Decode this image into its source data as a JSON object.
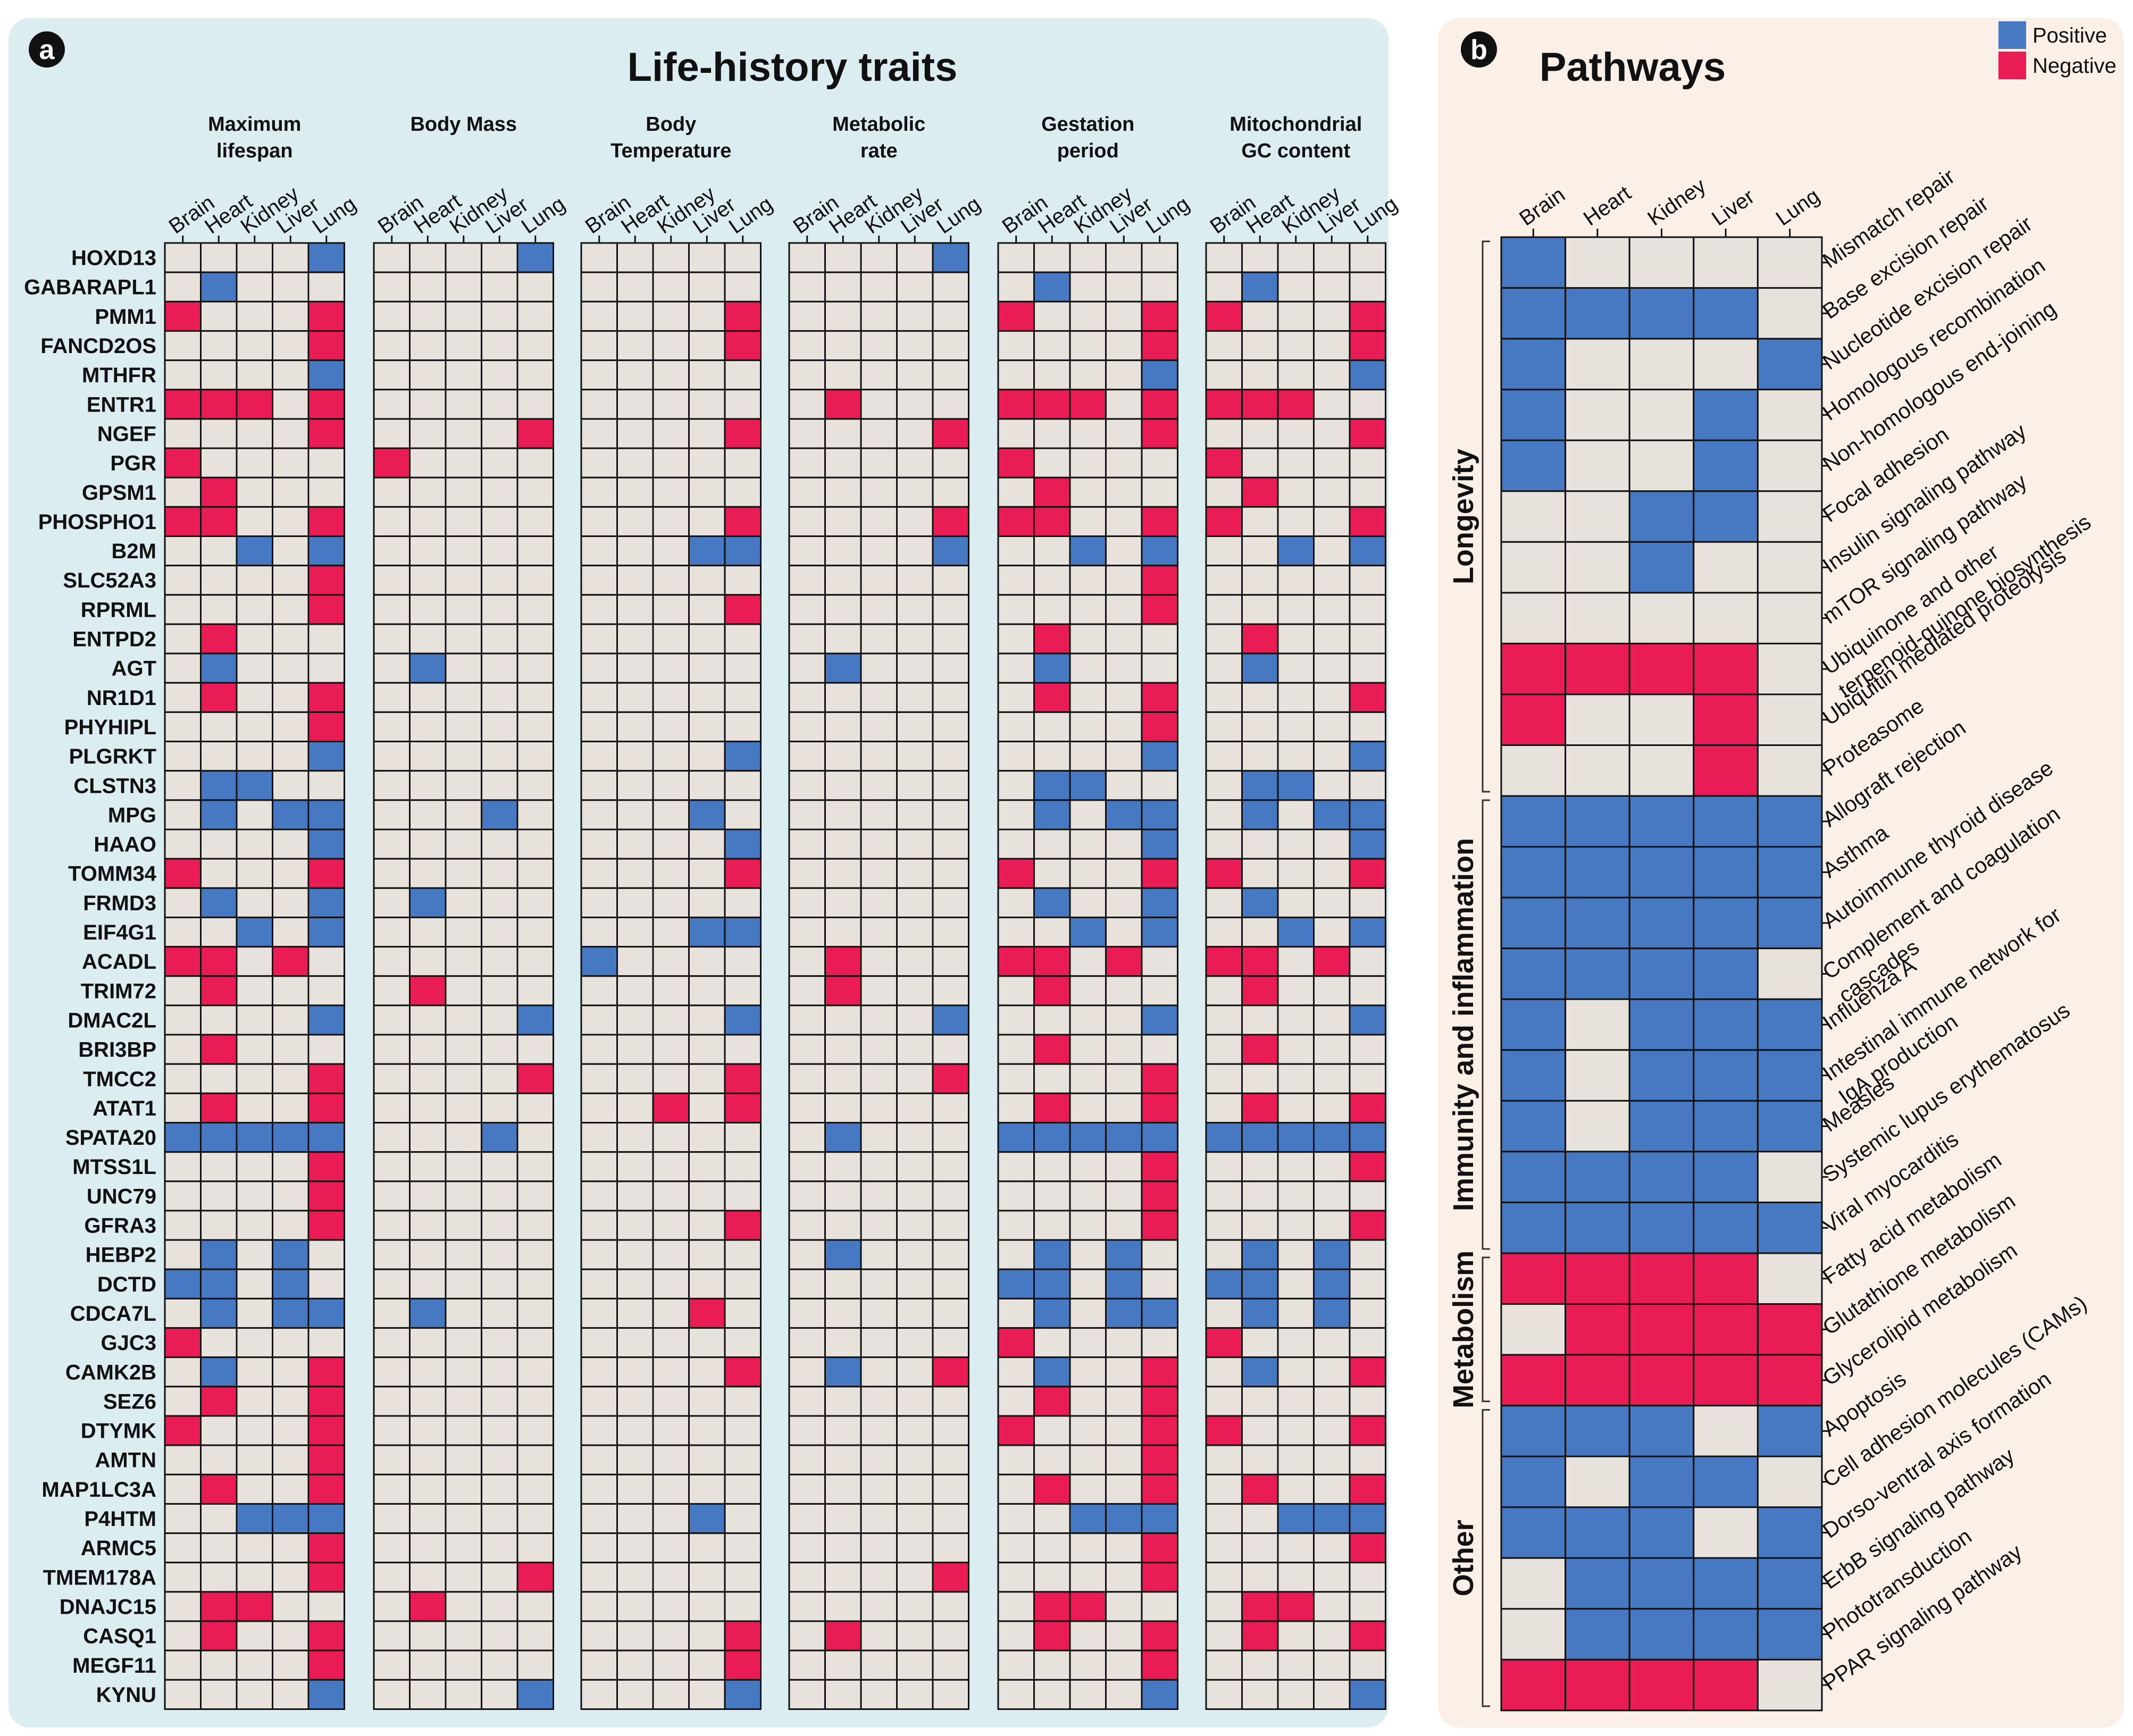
{
  "colors": {
    "positive": "#4679c2",
    "negative": "#ea1c55",
    "neutral": "#e7e3dc"
  },
  "chart_data": [
    {
      "type": "heatmap",
      "panel_label": "a",
      "title": "Life-history traits",
      "tissues": [
        "Brain",
        "Heart",
        "Kidney",
        "Liver",
        "Lung"
      ],
      "traits": [
        {
          "line1": "Maximum",
          "line2": "lifespan"
        },
        {
          "line1": "Body Mass",
          "line2": ""
        },
        {
          "line1": "Body",
          "line2": "Temperature"
        },
        {
          "line1": "Metabolic",
          "line2": "rate"
        },
        {
          "line1": "Gestation",
          "line2": "period"
        },
        {
          "line1": "Mitochondrial",
          "line2": "GC content"
        }
      ],
      "value_key": {
        "P": "Positive",
        "N": "Negative",
        ".": "No association"
      },
      "genes": [
        {
          "name": "HOXD13",
          "values": [
            "....P",
            "....P",
            ".....",
            "....P",
            ".....",
            "....."
          ]
        },
        {
          "name": "GABARAPL1",
          "values": [
            ".P...",
            ".....",
            ".....",
            ".....",
            ".P...",
            ".P..."
          ]
        },
        {
          "name": "PMM1",
          "values": [
            "N...N",
            ".....",
            "....N",
            ".....",
            "N...N",
            "N...N"
          ]
        },
        {
          "name": "FANCD2OS",
          "values": [
            "....N",
            ".....",
            "....N",
            ".....",
            "....N",
            "....N"
          ]
        },
        {
          "name": "MTHFR",
          "values": [
            "....P",
            ".....",
            ".....",
            ".....",
            "....P",
            "....P"
          ]
        },
        {
          "name": "ENTR1",
          "values": [
            "NNN.N",
            ".....",
            ".....",
            ".N...",
            "NNN.N",
            "NNN.."
          ]
        },
        {
          "name": "NGEF",
          "values": [
            "....N",
            "....N",
            "....N",
            "....N",
            "....N",
            "....N"
          ]
        },
        {
          "name": "PGR",
          "values": [
            "N....",
            "N....",
            ".....",
            ".....",
            "N....",
            "N...."
          ]
        },
        {
          "name": "GPSM1",
          "values": [
            ".N...",
            ".....",
            ".....",
            ".....",
            ".N...",
            ".N..."
          ]
        },
        {
          "name": "PHOSPHO1",
          "values": [
            "NN..N",
            ".....",
            "....N",
            "....N",
            "NN..N",
            "N...N"
          ]
        },
        {
          "name": "B2M",
          "values": [
            "..P.P",
            ".....",
            "...PP",
            "....P",
            "..P.P",
            "..P.P"
          ]
        },
        {
          "name": "SLC52A3",
          "values": [
            "....N",
            ".....",
            ".....",
            ".....",
            "....N",
            "....."
          ]
        },
        {
          "name": "RPRML",
          "values": [
            "....N",
            ".....",
            "....N",
            ".....",
            "....N",
            "....."
          ]
        },
        {
          "name": "ENTPD2",
          "values": [
            ".N...",
            ".....",
            ".....",
            ".....",
            ".N...",
            ".N..."
          ]
        },
        {
          "name": "AGT",
          "values": [
            ".P...",
            ".P...",
            ".....",
            ".P...",
            ".P...",
            ".P..."
          ]
        },
        {
          "name": "NR1D1",
          "values": [
            ".N..N",
            ".....",
            ".....",
            ".....",
            ".N..N",
            "....N"
          ]
        },
        {
          "name": "PHYHIPL",
          "values": [
            "....N",
            ".....",
            ".....",
            ".....",
            "....N",
            "....."
          ]
        },
        {
          "name": "PLGRKT",
          "values": [
            "....P",
            ".....",
            "....P",
            ".....",
            "....P",
            "....P"
          ]
        },
        {
          "name": "CLSTN3",
          "values": [
            ".PP..",
            ".....",
            ".....",
            ".....",
            ".PP..",
            ".PP.."
          ]
        },
        {
          "name": "MPG",
          "values": [
            ".P.PP",
            "...P.",
            "...P.",
            ".....",
            ".P.PP",
            ".P.PP"
          ]
        },
        {
          "name": "HAAO",
          "values": [
            "....P",
            ".....",
            "....P",
            ".....",
            "....P",
            "....P"
          ]
        },
        {
          "name": "TOMM34",
          "values": [
            "N...N",
            ".....",
            "....N",
            ".....",
            "N...N",
            "N...N"
          ]
        },
        {
          "name": "FRMD3",
          "values": [
            ".P..P",
            ".P...",
            ".....",
            ".....",
            ".P..P",
            ".P..."
          ]
        },
        {
          "name": "EIF4G1",
          "values": [
            "..P.P",
            ".....",
            "...PP",
            ".....",
            "..P.P",
            "..P.P"
          ]
        },
        {
          "name": "ACADL",
          "values": [
            "NN.N.",
            ".....",
            "P....",
            ".N...",
            "NN.N.",
            "NN.N."
          ]
        },
        {
          "name": "TRIM72",
          "values": [
            ".N...",
            ".N...",
            ".....",
            ".N...",
            ".N...",
            ".N..."
          ]
        },
        {
          "name": "DMAC2L",
          "values": [
            "....P",
            "....P",
            "....P",
            "....P",
            "....P",
            "....P"
          ]
        },
        {
          "name": "BRI3BP",
          "values": [
            ".N...",
            ".....",
            ".....",
            ".....",
            ".N...",
            ".N..."
          ]
        },
        {
          "name": "TMCC2",
          "values": [
            "....N",
            "....N",
            "....N",
            "....N",
            "....N",
            "....."
          ]
        },
        {
          "name": "ATAT1",
          "values": [
            ".N..N",
            ".....",
            "..N.N",
            ".....",
            ".N..N",
            ".N..N"
          ]
        },
        {
          "name": "SPATA20",
          "values": [
            "PPPPP",
            "...P.",
            ".....",
            ".P...",
            "PPPPP",
            "PPPPP"
          ]
        },
        {
          "name": "MTSS1L",
          "values": [
            "....N",
            ".....",
            ".....",
            ".....",
            "....N",
            "....N"
          ]
        },
        {
          "name": "UNC79",
          "values": [
            "....N",
            ".....",
            ".....",
            ".....",
            "....N",
            "....."
          ]
        },
        {
          "name": "GFRA3",
          "values": [
            "....N",
            ".....",
            "....N",
            ".....",
            "....N",
            "....N"
          ]
        },
        {
          "name": "HEBP2",
          "values": [
            ".P.P.",
            ".....",
            ".....",
            ".P...",
            ".P.P.",
            ".P.P."
          ]
        },
        {
          "name": "DCTD",
          "values": [
            "PP.P.",
            ".....",
            ".....",
            ".....",
            "PP.P.",
            "PP.P."
          ]
        },
        {
          "name": "CDCA7L",
          "values": [
            ".P.PP",
            ".P...",
            "...N.",
            ".....",
            ".P.PP",
            ".P.P."
          ]
        },
        {
          "name": "GJC3",
          "values": [
            "N....",
            ".....",
            ".....",
            ".....",
            "N....",
            "N...."
          ]
        },
        {
          "name": "CAMK2B",
          "values": [
            ".P..N",
            ".....",
            "....N",
            ".P..N",
            ".P..N",
            ".P..N"
          ]
        },
        {
          "name": "SEZ6",
          "values": [
            ".N..N",
            ".....",
            ".....",
            ".....",
            ".N..N",
            "....."
          ]
        },
        {
          "name": "DTYMK",
          "values": [
            "N...N",
            ".....",
            ".....",
            ".....",
            "N...N",
            "N...N"
          ]
        },
        {
          "name": "AMTN",
          "values": [
            "....N",
            ".....",
            ".....",
            ".....",
            "....N",
            "....."
          ]
        },
        {
          "name": "MAP1LC3A",
          "values": [
            ".N..N",
            ".....",
            ".....",
            ".....",
            ".N..N",
            ".N..N"
          ]
        },
        {
          "name": "P4HTM",
          "values": [
            "..PPP",
            ".....",
            "...P.",
            ".....",
            "..PPP",
            "..PPP"
          ]
        },
        {
          "name": "ARMC5",
          "values": [
            "....N",
            ".....",
            ".....",
            ".....",
            "....N",
            "....N"
          ]
        },
        {
          "name": "TMEM178A",
          "values": [
            "....N",
            "....N",
            ".....",
            "....N",
            "....N",
            "....."
          ]
        },
        {
          "name": "DNAJC15",
          "values": [
            ".NN..",
            ".N...",
            ".....",
            ".....",
            ".NN..",
            ".NN.."
          ]
        },
        {
          "name": "CASQ1",
          "values": [
            ".N..N",
            ".....",
            "....N",
            ".N...",
            ".N..N",
            ".N..N"
          ]
        },
        {
          "name": "MEGF11",
          "values": [
            "....N",
            ".....",
            "....N",
            ".....",
            "....N",
            "....."
          ]
        },
        {
          "name": "KYNU",
          "values": [
            "....P",
            "....P",
            "....P",
            ".....",
            "....P",
            "....P"
          ]
        }
      ]
    },
    {
      "type": "heatmap",
      "panel_label": "b",
      "title": "Pathways",
      "tissues": [
        "Brain",
        "Heart",
        "Kidney",
        "Liver",
        "Lung"
      ],
      "legend": [
        {
          "label": "Positive",
          "color": "#4679c2"
        },
        {
          "label": "Negative",
          "color": "#ea1c55"
        }
      ],
      "categories": [
        {
          "label": "Longevity",
          "from": 0,
          "to": 10
        },
        {
          "label": "Immunity and inflammation",
          "from": 11,
          "to": 19
        },
        {
          "label": "Metabolism",
          "from": 20,
          "to": 22
        },
        {
          "label": "Other",
          "from": 23,
          "to": 28
        }
      ],
      "pathways": [
        {
          "lines": [
            "Mismatch repair"
          ],
          "values": "P...."
        },
        {
          "lines": [
            "Base excision repair"
          ],
          "values": "PPPP."
        },
        {
          "lines": [
            "Nucleotide excision repair"
          ],
          "values": "P...P"
        },
        {
          "lines": [
            "Homologous recombination"
          ],
          "values": "P..P."
        },
        {
          "lines": [
            "Non-homologous end-joining"
          ],
          "values": "P..P."
        },
        {
          "lines": [
            "Focal adhesion"
          ],
          "values": "..PP."
        },
        {
          "lines": [
            "Insulin signaling pathway"
          ],
          "values": "..P.."
        },
        {
          "lines": [
            "mTOR signaling pathway"
          ],
          "values": "....."
        },
        {
          "lines": [
            "Ubiquinone and other",
            "terpenoid-quinone biosynthesis"
          ],
          "values": "NNNN."
        },
        {
          "lines": [
            "Ubiquitin mediated proteolysis"
          ],
          "values": "N..N."
        },
        {
          "lines": [
            "Proteasome"
          ],
          "values": "...N."
        },
        {
          "lines": [
            "Allograft rejection"
          ],
          "values": "PPPPP"
        },
        {
          "lines": [
            "Asthma"
          ],
          "values": "PPPPP"
        },
        {
          "lines": [
            "Autoimmune thyroid disease"
          ],
          "values": "PPPPP"
        },
        {
          "lines": [
            "Complement and coagulation",
            "cascades"
          ],
          "values": "PPPP."
        },
        {
          "lines": [
            "Influenza A"
          ],
          "values": "P.PPP"
        },
        {
          "lines": [
            "Intestinal immune network for",
            "IgA production"
          ],
          "values": "P.PPP"
        },
        {
          "lines": [
            "Measles"
          ],
          "values": "P.PPP"
        },
        {
          "lines": [
            "Systemic lupus erythematosus"
          ],
          "values": "PPPP."
        },
        {
          "lines": [
            "Viral myocarditis"
          ],
          "values": "PPPPP"
        },
        {
          "lines": [
            "Fatty acid metabolism"
          ],
          "values": "NNNN."
        },
        {
          "lines": [
            "Glutathione metabolism"
          ],
          "values": ".NNNN"
        },
        {
          "lines": [
            "Glycerolipid metabolism"
          ],
          "values": "NNNNN"
        },
        {
          "lines": [
            "Apoptosis"
          ],
          "values": "PPP.P"
        },
        {
          "lines": [
            "Cell adhesion molecules (CAMs)"
          ],
          "values": "P.PP."
        },
        {
          "lines": [
            "Dorso-ventral axis formation"
          ],
          "values": "PPP.P"
        },
        {
          "lines": [
            "ErbB signaling pathway"
          ],
          "values": ".PPPP"
        },
        {
          "lines": [
            "Phototransduction"
          ],
          "values": ".PPPP"
        },
        {
          "lines": [
            "PPAR signaling pathway"
          ],
          "values": "NNNN."
        }
      ]
    }
  ]
}
